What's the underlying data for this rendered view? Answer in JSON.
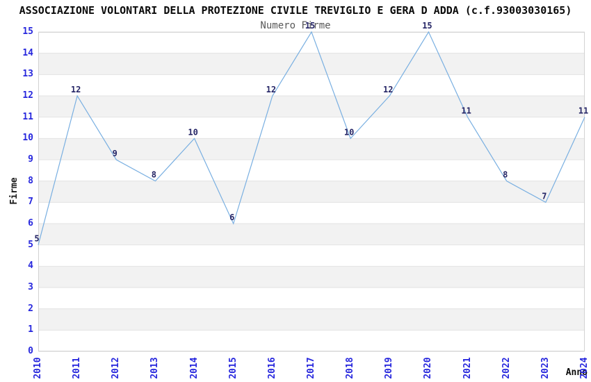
{
  "title": "ASSOCIAZIONE VOLONTARI DELLA PROTEZIONE CIVILE TREVIGLIO E GERA D ADDA (c.f.93003030165)",
  "chart_data": {
    "type": "line",
    "subtitle": "Numero Firme",
    "categories": [
      "2010",
      "2011",
      "2012",
      "2013",
      "2014",
      "2015",
      "2016",
      "2017",
      "2018",
      "2019",
      "2020",
      "2021",
      "2022",
      "2023",
      "2024"
    ],
    "values": [
      5,
      12,
      9,
      8,
      10,
      6,
      12,
      15,
      10,
      12,
      15,
      11,
      8,
      7,
      11
    ],
    "xlabel": "Anno",
    "ylabel": "Firme",
    "ylim": [
      0,
      15
    ],
    "y_ticks": [
      0,
      1,
      2,
      3,
      4,
      5,
      6,
      7,
      8,
      9,
      10,
      11,
      12,
      13,
      14,
      15
    ],
    "grid": "horizontal gridlines with alternating shaded bands",
    "legend": "none",
    "point_labels_shown": true
  },
  "colors": {
    "line": "#79afe1",
    "band": "#f2f2f2",
    "grid": "#e3e3e3",
    "border": "#d2d2d2",
    "axis_tick_text": "#2727dd",
    "value_label_text": "#252566",
    "subtitle_text": "#595959",
    "title_text": "#0a0a0a",
    "background": "#ffffff"
  }
}
